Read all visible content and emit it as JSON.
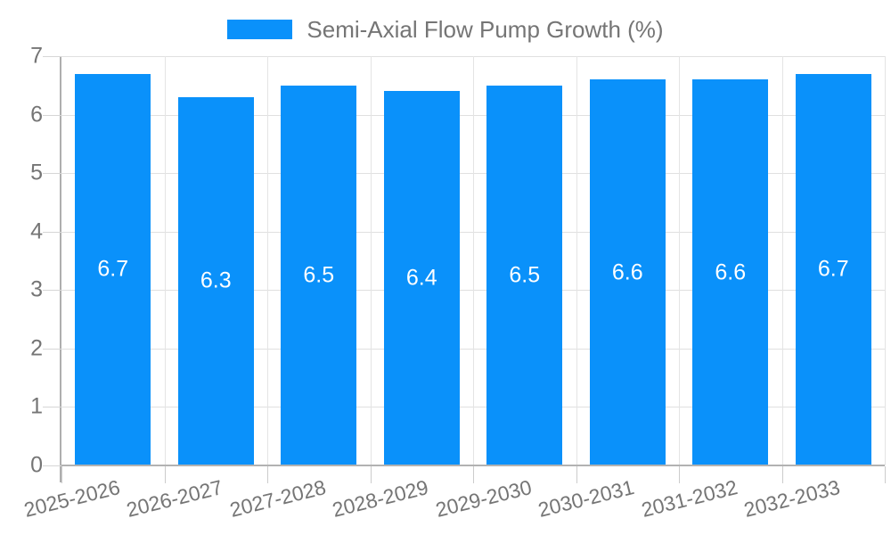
{
  "legend": {
    "label": "Semi-Axial Flow Pump Growth (%)"
  },
  "chart_data": {
    "type": "bar",
    "title": "",
    "xlabel": "",
    "ylabel": "",
    "categories": [
      "2025-2026",
      "2026-2027",
      "2027-2028",
      "2028-2029",
      "2029-2030",
      "2030-2031",
      "2031-2032",
      "2032-2033"
    ],
    "series": [
      {
        "name": "Semi-Axial Flow Pump Growth (%)",
        "values": [
          6.7,
          6.3,
          6.5,
          6.4,
          6.5,
          6.6,
          6.6,
          6.7
        ]
      }
    ],
    "data_labels": [
      "6.7",
      "6.3",
      "6.5",
      "6.4",
      "6.5",
      "6.6",
      "6.6",
      "6.7"
    ],
    "ylim": [
      0,
      7
    ],
    "yticks": [
      "0",
      "1",
      "2",
      "3",
      "4",
      "5",
      "6",
      "7"
    ],
    "grid": true,
    "legend_position": "top"
  },
  "colors": {
    "bar": "#0a91fa",
    "bar_label": "#ffffff",
    "axis_line": "#b2b2b2",
    "gridline": "#e0e0e0",
    "tick": "#cccccc",
    "text": "#757575",
    "background": "#ffffff"
  }
}
